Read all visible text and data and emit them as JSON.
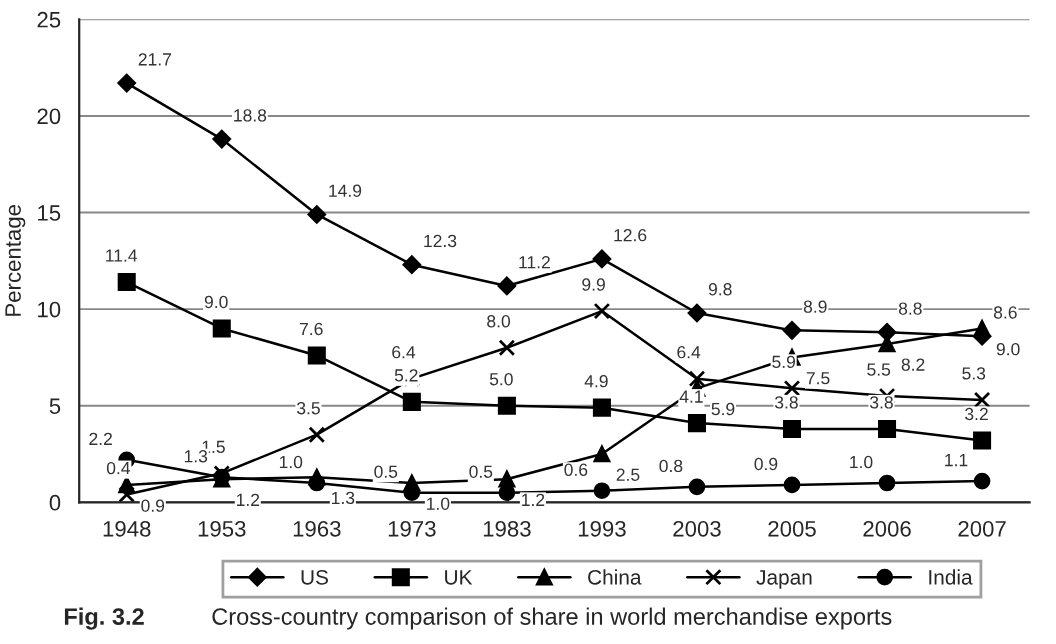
{
  "chart_data": {
    "type": "line",
    "ylabel": "Percentage",
    "categories": [
      "1948",
      "1953",
      "1963",
      "1973",
      "1983",
      "1993",
      "2003",
      "2005",
      "2006",
      "2007"
    ],
    "series": [
      {
        "name": "US",
        "color": "#000000",
        "marker": "diamond",
        "values": [
          21.7,
          18.8,
          14.9,
          12.3,
          11.2,
          12.6,
          9.8,
          8.9,
          8.8,
          8.6
        ],
        "value_labels": [
          "21.7",
          "18.8",
          "14.9",
          "12.3",
          "11.2",
          "12.6",
          "9.8",
          "8.9",
          "8.8",
          "8.6"
        ]
      },
      {
        "name": "UK",
        "color": "#000000",
        "marker": "square",
        "values": [
          11.4,
          9.0,
          7.6,
          5.2,
          5.0,
          4.9,
          4.1,
          3.8,
          3.8,
          3.2
        ],
        "value_labels": [
          "11.4",
          "9.0",
          "7.6",
          "5.2",
          "5.0",
          "4.9",
          "4.1",
          "3.8",
          "3.8",
          "3.2"
        ]
      },
      {
        "name": "China",
        "color": "#000000",
        "marker": "triangle",
        "values": [
          0.9,
          1.2,
          1.3,
          1.0,
          1.2,
          2.5,
          5.9,
          7.5,
          8.2,
          9.0
        ],
        "value_labels": [
          "0.9",
          "1.2",
          "1.3",
          "1.0",
          "1.2",
          "2.5",
          "5.9",
          "7.5",
          "8.2",
          "9.0"
        ]
      },
      {
        "name": "Japan",
        "color": "#000000",
        "marker": "cross",
        "values": [
          0.4,
          1.5,
          3.5,
          6.4,
          8.0,
          9.9,
          6.4,
          5.9,
          5.5,
          5.3
        ],
        "value_labels": [
          "0.4",
          "1.5",
          "3.5",
          "6.4",
          "8.0",
          "9.9",
          "6.4",
          "5.9",
          "5.5",
          "5.3"
        ]
      },
      {
        "name": "India",
        "color": "#000000",
        "marker": "circle",
        "values": [
          2.2,
          1.3,
          1.0,
          0.5,
          0.5,
          0.6,
          0.8,
          0.9,
          1.0,
          1.1
        ],
        "value_labels": [
          "2.2",
          "1.3",
          "1.0",
          "0.5",
          "0.5",
          "0.6",
          "0.8",
          "0.9",
          "1.0",
          "1.1"
        ]
      }
    ],
    "ylim": [
      0,
      25
    ],
    "yticks": [
      0,
      5,
      10,
      15,
      20,
      25
    ],
    "grid": "y",
    "legend": "bottom",
    "annotations": [
      "Fig. 3.2",
      "Cross-country comparison of share in world merchandise exports"
    ]
  }
}
